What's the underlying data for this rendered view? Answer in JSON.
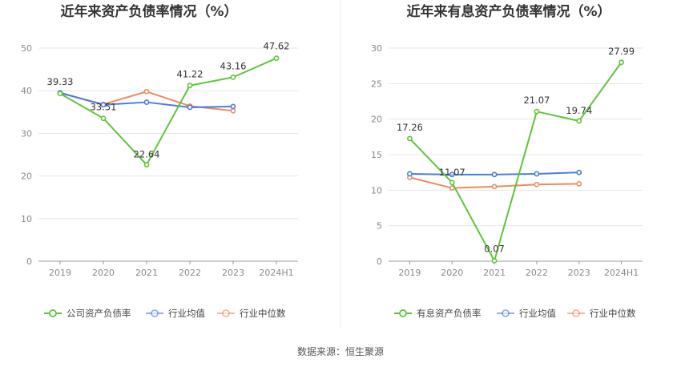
{
  "source_label": "数据来源：恒生聚源",
  "colors": {
    "main": "#5ec53a",
    "avg": "#4a7de0",
    "median": "#f08a5d",
    "grid": "#e5e5e5",
    "axis": "#999999"
  },
  "chart_data": [
    {
      "type": "line",
      "title": "近年来资产负债率情况（%）",
      "categories": [
        "2019",
        "2020",
        "2021",
        "2022",
        "2023",
        "2024H1"
      ],
      "ylim": [
        0,
        50
      ],
      "yticks": [
        0,
        10,
        20,
        30,
        40,
        50
      ],
      "grid": true,
      "legend_position": "bottom",
      "series": [
        {
          "name": "公司资产负债率",
          "values": [
            39.33,
            33.51,
            22.64,
            41.22,
            43.16,
            47.62
          ],
          "labels": [
            "39.33",
            "33.51",
            "22.64",
            "41.22",
            "43.16",
            "47.62"
          ]
        },
        {
          "name": "行业均值",
          "values": [
            39.5,
            36.7,
            37.3,
            36.1,
            36.3,
            null
          ]
        },
        {
          "name": "行业中位数",
          "values": [
            39.5,
            36.8,
            39.8,
            36.4,
            35.3,
            null
          ]
        }
      ]
    },
    {
      "type": "line",
      "title": "近年来有息资产负债率情况（%）",
      "categories": [
        "2019",
        "2020",
        "2021",
        "2022",
        "2023",
        "2024H1"
      ],
      "ylim": [
        0,
        30
      ],
      "yticks": [
        0,
        5,
        10,
        15,
        20,
        25,
        30
      ],
      "grid": true,
      "legend_position": "bottom",
      "series": [
        {
          "name": "有息资产负债率",
          "values": [
            17.26,
            11.07,
            0.07,
            21.07,
            19.74,
            27.99
          ],
          "labels": [
            "17.26",
            "11.07",
            "0.07",
            "21.07",
            "19.74",
            "27.99"
          ]
        },
        {
          "name": "行业均值",
          "values": [
            12.3,
            12.2,
            12.2,
            12.3,
            12.5,
            null
          ]
        },
        {
          "name": "行业中位数",
          "values": [
            11.8,
            10.3,
            10.5,
            10.8,
            10.9,
            null
          ]
        }
      ]
    }
  ]
}
